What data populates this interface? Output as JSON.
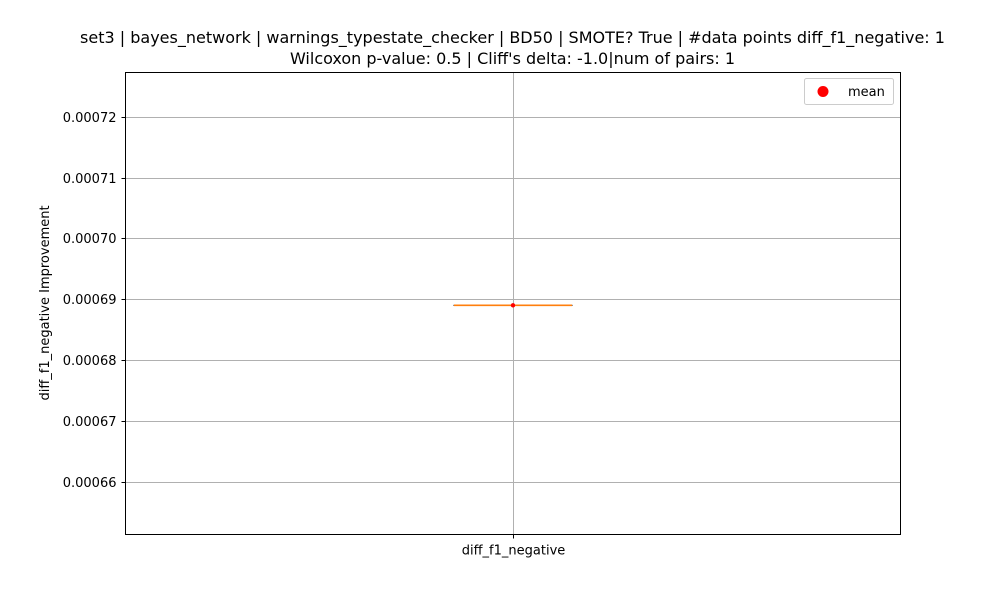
{
  "chart_data": {
    "type": "box",
    "title_line1": "set3 | bayes_network | warnings_typestate_checker | BD50 | SMOTE? True | #data points diff_f1_negative: 1",
    "title_line2": "Wilcoxon p-value: 0.5 | Cliff's delta: -1.0|num of pairs: 1",
    "xlabel": "",
    "ylabel": "diff_f1_negative Improvement",
    "categories": [
      "diff_f1_negative"
    ],
    "series": [
      {
        "values": [
          0.000689
        ],
        "median": 0.000689,
        "q1": 0.000689,
        "q3": 0.000689,
        "whisker_low": 0.000689,
        "whisker_high": 0.000689,
        "mean": 0.000689
      }
    ],
    "yticks": [
      0.00066,
      0.00067,
      0.00068,
      0.00069,
      0.0007,
      0.00071,
      0.00072
    ],
    "ytick_labels": [
      "0.00066",
      "0.00067",
      "0.00068",
      "0.00069",
      "0.00070",
      "0.00071",
      "0.00072"
    ],
    "ylim": [
      0.0006513,
      0.0007273
    ],
    "grid": true,
    "legend": {
      "position": "upper-right",
      "entries": [
        {
          "label": "mean",
          "color": "#ff0000",
          "marker": "circle"
        }
      ]
    },
    "colors": {
      "median": "#ff7f0e",
      "box": "#000000",
      "mean": "#ff0000",
      "grid": "#b0b0b0"
    }
  }
}
